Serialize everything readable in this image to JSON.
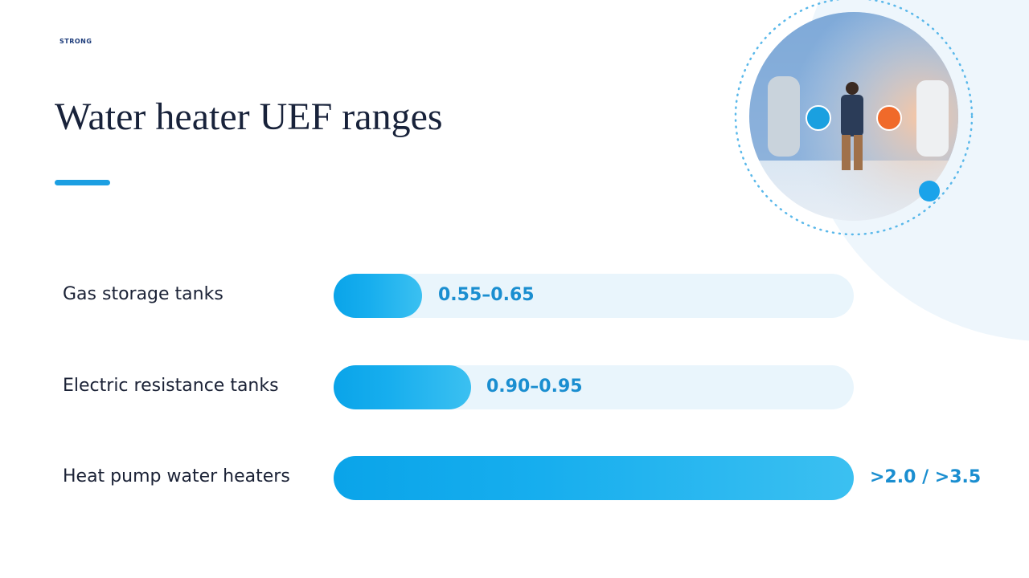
{
  "logo": "STRONG",
  "title": "Water heater UEF ranges",
  "rows": [
    {
      "label": "Gas storage tanks",
      "value": "0.55–0.65"
    },
    {
      "label": "Electric resistance tanks",
      "value": "0.90–0.95"
    },
    {
      "label": "Heat pump water heaters",
      "value": ">2.0 / >3.5"
    }
  ]
}
